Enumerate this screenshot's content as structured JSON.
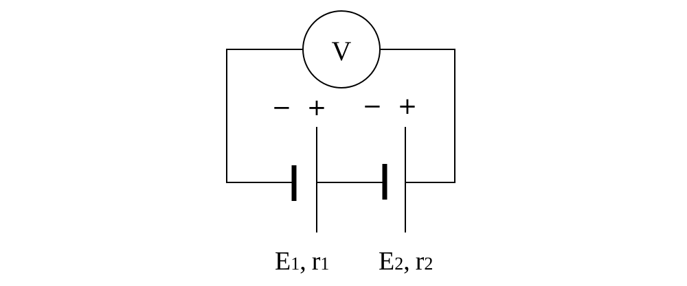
{
  "diagram": {
    "voltmeter": {
      "symbol": "V"
    },
    "cells": [
      {
        "neg_sign": "−",
        "pos_sign": "+",
        "emf_main": "E",
        "emf_sub": "1",
        "separator": ",",
        "r_main": "r",
        "r_sub": "1"
      },
      {
        "neg_sign": "−",
        "pos_sign": "+",
        "emf_main": "E",
        "emf_sub": "2",
        "separator": ",",
        "r_main": "r",
        "r_sub": "2"
      }
    ],
    "colors": {
      "ink": "#000000",
      "background": "#ffffff"
    }
  }
}
